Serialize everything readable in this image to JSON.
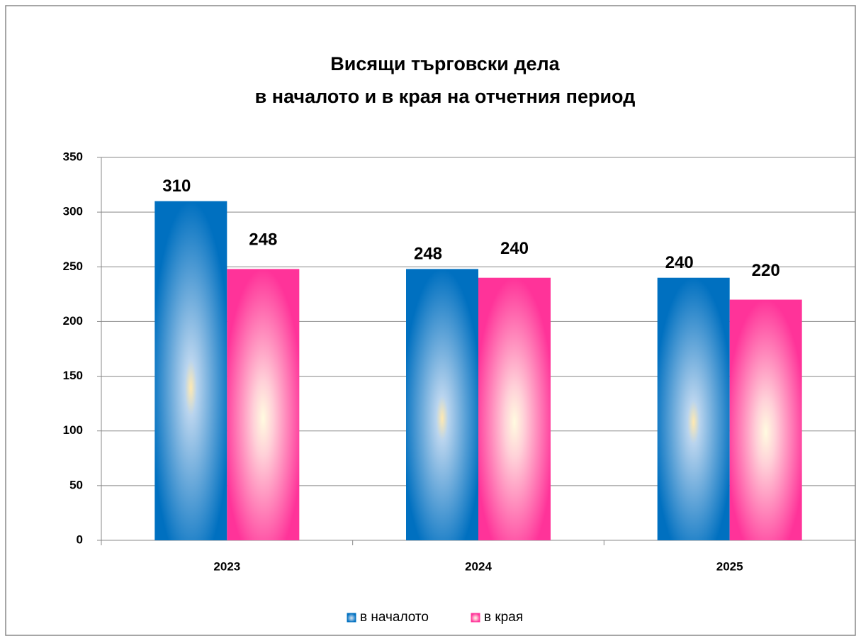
{
  "chart_data": {
    "type": "bar",
    "title": [
      "Висящи търговски дела",
      "в началото и в края на отчетния период"
    ],
    "categories": [
      "2023",
      "2024",
      "2025"
    ],
    "series": [
      {
        "name": "в началото",
        "color": "#0070c0",
        "values": [
          310,
          248,
          240
        ]
      },
      {
        "name": "в края",
        "color": "#ff3399",
        "values": [
          248,
          240,
          220
        ]
      }
    ],
    "ylim": [
      0,
      350
    ],
    "yticks": [
      0,
      50,
      100,
      150,
      200,
      250,
      300,
      350
    ],
    "grid": true,
    "legend": "bottom"
  }
}
